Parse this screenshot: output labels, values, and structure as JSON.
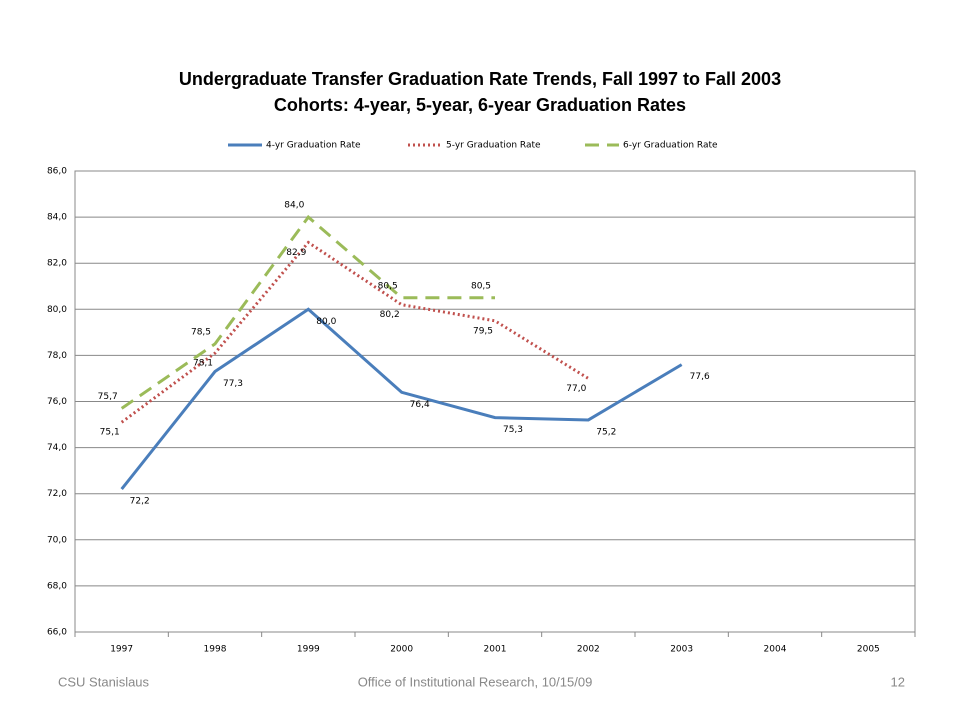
{
  "chart_data": {
    "type": "line",
    "title": "Undergraduate Transfer Graduation Rate Trends, Fall 1997 to Fall 2003",
    "subtitle": "Cohorts: 4-year, 5-year, 6-year Graduation Rates",
    "categories": [
      "1997",
      "1998",
      "1999",
      "2000",
      "2001",
      "2002",
      "2003",
      "2004",
      "2005"
    ],
    "series": [
      {
        "name": "4-yr Graduation Rate",
        "color": "#4a7ebb",
        "dash": "solid",
        "values": [
          72.2,
          77.3,
          80.0,
          76.4,
          75.3,
          75.2,
          77.6,
          null,
          null
        ],
        "value_labels": [
          "72,2",
          "77,3",
          "80,0",
          "76,4",
          "75,3",
          "75,2",
          "77,6",
          null,
          null
        ]
      },
      {
        "name": "5-yr Graduation Rate",
        "color": "#c0504d",
        "dash": "dotted",
        "values": [
          75.1,
          78.1,
          82.9,
          80.2,
          79.5,
          77.0,
          null,
          null,
          null
        ],
        "value_labels": [
          "75,1",
          "78,1",
          "82,9",
          "80,2",
          "79,5",
          "77,0",
          null,
          null,
          null
        ]
      },
      {
        "name": "6-yr Graduation Rate",
        "color": "#9bbb59",
        "dash": "dashed",
        "values": [
          75.7,
          78.5,
          84.0,
          80.5,
          80.5,
          null,
          null,
          null,
          null
        ],
        "value_labels": [
          "75,7",
          "78,5",
          "84,0",
          "80,5",
          "80,5",
          null,
          null,
          null,
          null
        ]
      }
    ],
    "ylim": [
      66,
      86
    ],
    "yticks": [
      {
        "value": 66,
        "label": "66,0"
      },
      {
        "value": 68,
        "label": "68,0"
      },
      {
        "value": 70,
        "label": "70,0"
      },
      {
        "value": 72,
        "label": "72,0"
      },
      {
        "value": 74,
        "label": "74,0"
      },
      {
        "value": 76,
        "label": "76,0"
      },
      {
        "value": 78,
        "label": "78,0"
      },
      {
        "value": 80,
        "label": "80,0"
      },
      {
        "value": 82,
        "label": "82,0"
      },
      {
        "value": 84,
        "label": "84,0"
      },
      {
        "value": 86,
        "label": "86,0"
      }
    ],
    "grid": true,
    "legend": "top"
  },
  "footer": {
    "left": "CSU Stanislaus",
    "center": "Office of Institutional Research, 10/15/09",
    "right": "12"
  }
}
